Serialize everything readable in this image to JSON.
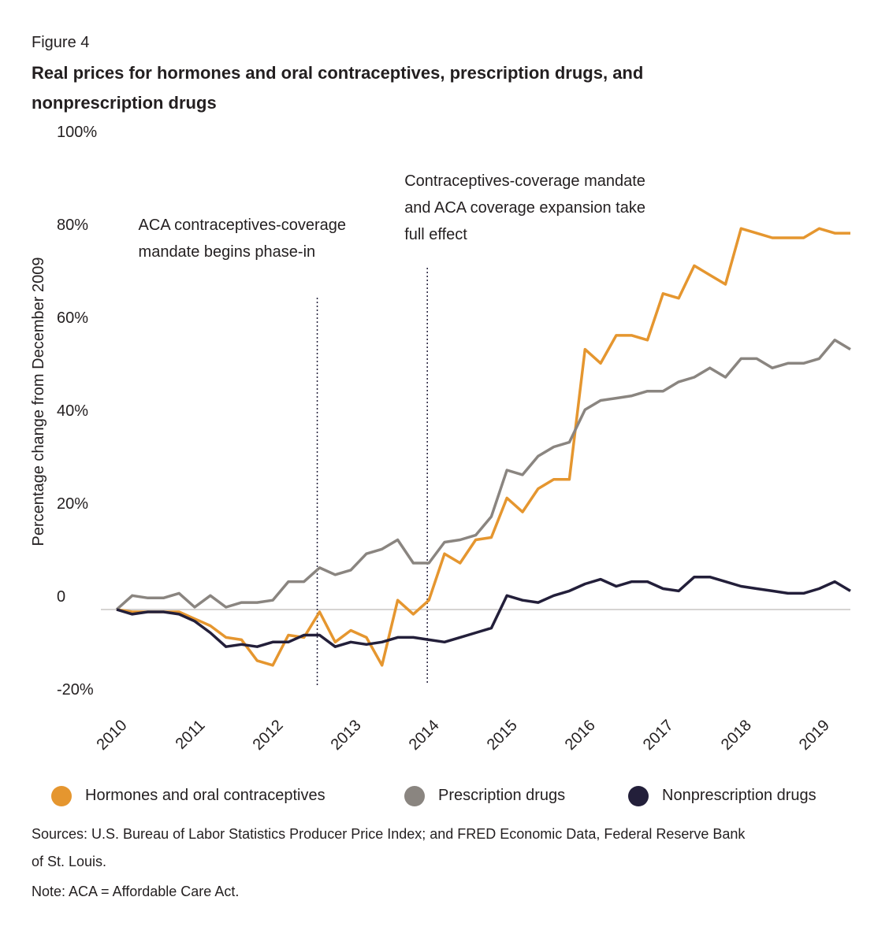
{
  "chart_data": {
    "type": "line",
    "figure_label": "Figure 4",
    "title_lines": [
      "Real prices for hormones and oral contraceptives, prescription drugs, and",
      "nonprescription drugs"
    ],
    "ylabel": "Percentage change from December 2009",
    "x": [
      2010.0,
      2010.2,
      2010.4,
      2010.6,
      2010.8,
      2011.0,
      2011.2,
      2011.4,
      2011.6,
      2011.8,
      2012.0,
      2012.2,
      2012.4,
      2012.6,
      2012.8,
      2013.0,
      2013.2,
      2013.4,
      2013.6,
      2013.8,
      2014.0,
      2014.2,
      2014.4,
      2014.6,
      2014.8,
      2015.0,
      2015.2,
      2015.4,
      2015.6,
      2015.8,
      2016.0,
      2016.2,
      2016.4,
      2016.6,
      2016.8,
      2017.0,
      2017.2,
      2017.4,
      2017.6,
      2017.8,
      2018.0,
      2018.2,
      2018.4,
      2018.6,
      2018.8,
      2019.0,
      2019.2,
      2019.4
    ],
    "xlim": [
      2010,
      2019.4
    ],
    "xticks": [
      2010,
      2011,
      2012,
      2013,
      2014,
      2015,
      2016,
      2017,
      2018,
      2019
    ],
    "ylim": [
      -20,
      100
    ],
    "yticks": [
      {
        "value": 100,
        "label": "100%"
      },
      {
        "value": 80,
        "label": "80%"
      },
      {
        "value": 60,
        "label": "60%"
      },
      {
        "value": 40,
        "label": "40%"
      },
      {
        "value": 20,
        "label": "20%"
      },
      0,
      {
        "value": -20,
        "label": "-20%"
      }
    ],
    "grid": false,
    "zero_line": true,
    "series": [
      {
        "name": "Hormones and oral contraceptives",
        "color": "#e5962f",
        "values": [
          0,
          -0.5,
          -0.5,
          -0.5,
          -0.5,
          -2,
          -3.5,
          -6,
          -6.5,
          -11,
          -12,
          -5.5,
          -6,
          -0.5,
          -7,
          -4.5,
          -6,
          -12,
          2,
          -1,
          2,
          12,
          10,
          15,
          15.5,
          24,
          21,
          26,
          28,
          28,
          56,
          53,
          59,
          59,
          58,
          68,
          67,
          74,
          72,
          70,
          82,
          81,
          80,
          80,
          80,
          82,
          81,
          81
        ]
      },
      {
        "name": "Prescription drugs",
        "color": "#8a8580",
        "values": [
          0,
          3,
          2.5,
          2.5,
          3.5,
          0.5,
          3,
          0.5,
          1.5,
          1.5,
          2,
          6,
          6,
          9,
          7.5,
          8.5,
          12,
          13,
          15,
          10,
          10,
          14.5,
          15,
          16,
          20,
          30,
          29,
          33,
          35,
          36,
          43,
          45,
          45.5,
          46,
          47,
          47,
          49,
          50,
          52,
          50,
          54,
          54,
          52,
          53,
          53,
          54,
          58,
          56
        ]
      },
      {
        "name": "Nonprescription drugs",
        "color": "#231f3a",
        "values": [
          0,
          -1,
          -0.5,
          -0.5,
          -1,
          -2.5,
          -5,
          -8,
          -7.5,
          -8,
          -7,
          -7,
          -5.5,
          -5.5,
          -8,
          -7,
          -7.5,
          -7,
          -6,
          -6,
          -6.5,
          -7,
          -6,
          -5,
          -4,
          3,
          2,
          1.5,
          3,
          4,
          5.5,
          6.5,
          5,
          6,
          6,
          4.5,
          4,
          7,
          7,
          6,
          5,
          4.5,
          4,
          3.5,
          3.5,
          4.5,
          6,
          4
        ]
      }
    ],
    "annotations": [
      {
        "x": 2012.57,
        "lines": [
          "ACA contraceptives-coverage",
          "mandate begins phase-in"
        ]
      },
      {
        "x": 2013.98,
        "lines": [
          "Contraceptives-coverage mandate",
          "and ACA coverage expansion take",
          "full effect"
        ]
      }
    ],
    "notes": [
      "Sources: U.S. Bureau of Labor Statistics Producer Price Index; and FRED Economic Data, Federal Reserve Bank",
      "of St. Louis.",
      "Note: ACA = Affordable Care Act."
    ]
  }
}
